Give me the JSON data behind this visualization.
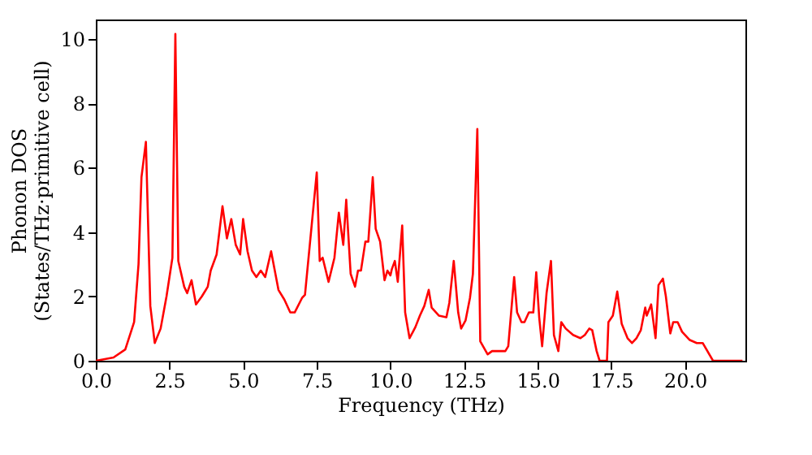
{
  "chart_data": {
    "type": "line",
    "xlabel": "Frequency (THz)",
    "ylabel": "Phonon DOS\n(States/THz·primitive cell)",
    "xlim": [
      0,
      22.05
    ],
    "ylim": [
      0,
      10.6
    ],
    "xticks": [
      {
        "value": 0,
        "label": "0.0"
      },
      {
        "value": 2.5,
        "label": "2.5"
      },
      {
        "value": 5,
        "label": "5.0"
      },
      {
        "value": 7.5,
        "label": "7.5"
      },
      {
        "value": 10,
        "label": "10.0"
      },
      {
        "value": 12.5,
        "label": "12.5"
      },
      {
        "value": 15,
        "label": "15.0"
      },
      {
        "value": 17.5,
        "label": "17.5"
      },
      {
        "value": 20,
        "label": "20.0"
      }
    ],
    "yticks": [
      0,
      2,
      4,
      6,
      8,
      10
    ],
    "grid": false,
    "line_style": "solid",
    "marker": "none",
    "x": [
      0,
      0.6,
      1.0,
      1.3,
      1.45,
      1.55,
      1.7,
      1.85,
      2.0,
      2.2,
      2.4,
      2.6,
      2.7,
      2.8,
      3.0,
      3.1,
      3.25,
      3.4,
      3.6,
      3.8,
      3.9,
      4.1,
      4.3,
      4.45,
      4.6,
      4.75,
      4.9,
      5.0,
      5.15,
      5.3,
      5.45,
      5.6,
      5.75,
      5.95,
      6.2,
      6.4,
      6.6,
      6.75,
      7.0,
      7.1,
      7.5,
      7.6,
      7.7,
      7.9,
      8.1,
      8.25,
      8.4,
      8.5,
      8.65,
      8.8,
      8.9,
      9.0,
      9.15,
      9.25,
      9.4,
      9.5,
      9.65,
      9.8,
      9.9,
      10.0,
      10.05,
      10.15,
      10.25,
      10.4,
      10.5,
      10.65,
      10.85,
      11.0,
      11.15,
      11.3,
      11.4,
      11.65,
      11.9,
      12.0,
      12.15,
      12.3,
      12.4,
      12.55,
      12.7,
      12.8,
      12.95,
      13.05,
      13.3,
      13.45,
      13.9,
      14.0,
      14.2,
      14.3,
      14.45,
      14.55,
      14.7,
      14.85,
      14.95,
      15.05,
      15.15,
      15.3,
      15.45,
      15.55,
      15.7,
      15.8,
      15.95,
      16.2,
      16.45,
      16.6,
      16.75,
      16.85,
      17.0,
      17.1,
      17.35,
      17.4,
      17.55,
      17.7,
      17.85,
      18.05,
      18.2,
      18.35,
      18.5,
      18.65,
      18.7,
      18.85,
      19.0,
      19.1,
      19.25,
      19.35,
      19.5,
      19.6,
      19.75,
      19.9,
      20.15,
      20.4,
      20.6,
      20.95,
      21.95
    ],
    "series": [
      {
        "color": "#ff0000",
        "values": [
          0,
          0.1,
          0.35,
          1.2,
          3.0,
          5.7,
          6.8,
          1.7,
          0.55,
          1.0,
          2.0,
          3.2,
          10.15,
          3.1,
          2.3,
          2.1,
          2.5,
          1.75,
          2.0,
          2.3,
          2.8,
          3.3,
          4.8,
          3.8,
          4.4,
          3.6,
          3.3,
          4.4,
          3.4,
          2.8,
          2.6,
          2.8,
          2.6,
          3.4,
          2.2,
          1.9,
          1.5,
          1.5,
          1.95,
          2.05,
          5.85,
          3.1,
          3.2,
          2.45,
          3.2,
          4.6,
          3.6,
          5.0,
          2.7,
          2.3,
          2.8,
          2.8,
          3.7,
          3.7,
          5.7,
          4.1,
          3.7,
          2.5,
          2.8,
          2.65,
          2.85,
          3.1,
          2.45,
          4.2,
          1.5,
          0.7,
          1.05,
          1.4,
          1.7,
          2.2,
          1.65,
          1.4,
          1.35,
          1.8,
          3.1,
          1.5,
          1.0,
          1.25,
          1.95,
          2.7,
          7.2,
          0.6,
          0.2,
          0.3,
          0.3,
          0.45,
          2.6,
          1.5,
          1.2,
          1.2,
          1.5,
          1.5,
          2.75,
          1.35,
          0.45,
          2.1,
          3.1,
          0.8,
          0.3,
          1.2,
          1.0,
          0.8,
          0.7,
          0.8,
          1.0,
          0.95,
          0.3,
          0,
          0,
          1.2,
          1.4,
          2.15,
          1.15,
          0.7,
          0.55,
          0.7,
          0.95,
          1.65,
          1.4,
          1.75,
          0.7,
          2.35,
          2.55,
          2.0,
          0.85,
          1.2,
          1.2,
          0.9,
          0.65,
          0.55,
          0.55,
          0,
          0
        ]
      }
    ]
  }
}
